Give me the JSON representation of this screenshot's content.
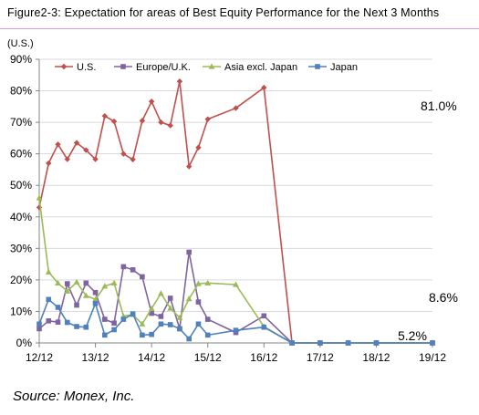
{
  "figure": {
    "title": "Figure2-3: Expectation for areas of Best Equity Performance for the Next 3 Months",
    "source": "Source: Monex, Inc."
  },
  "chart_data": {
    "type": "line",
    "unit_label": "(U.S.)",
    "ylim": [
      0,
      90
    ],
    "ytick_step": 10,
    "ytick_labels": [
      "0%",
      "10%",
      "20%",
      "30%",
      "40%",
      "50%",
      "60%",
      "70%",
      "80%",
      "90%"
    ],
    "xtick_labels": [
      "12/12",
      "13/12",
      "14/12",
      "15/12",
      "16/12",
      "17/12",
      "18/12",
      "19/12"
    ],
    "xtick_positions": [
      0,
      12,
      24,
      36,
      48,
      60,
      72,
      84
    ],
    "xlim": [
      0,
      84
    ],
    "legend_position": "top-left",
    "grid": "horizontal",
    "series": [
      {
        "name": "U.S.",
        "color": "#c0504d",
        "marker": "diamond",
        "x": [
          0,
          2,
          4,
          6,
          8,
          10,
          12,
          14,
          16,
          18,
          20,
          22,
          24,
          26,
          28,
          30,
          32,
          34,
          36,
          42,
          48,
          54,
          60,
          66,
          72,
          84
        ],
        "y": [
          43,
          57,
          63,
          58.3,
          63.5,
          61.2,
          58.3,
          72,
          70.3,
          60,
          58.2,
          70.5,
          76.6,
          70,
          69,
          83,
          56,
          62,
          71,
          74.5,
          81,
          0,
          0,
          0,
          0,
          0
        ]
      },
      {
        "name": "Europe/U.K.",
        "color": "#8064a2",
        "marker": "square",
        "x": [
          0,
          2,
          4,
          6,
          8,
          10,
          12,
          14,
          16,
          18,
          20,
          22,
          24,
          26,
          28,
          30,
          32,
          34,
          36,
          42,
          48,
          54,
          60,
          66,
          72,
          84
        ],
        "y": [
          4.5,
          7,
          6.6,
          18.8,
          12,
          19,
          16,
          7.5,
          6.3,
          24.2,
          23.2,
          21,
          9.4,
          8.4,
          14.2,
          4.5,
          28.8,
          13,
          7.5,
          3.3,
          8.6,
          0,
          0,
          0,
          0,
          0
        ]
      },
      {
        "name": "Asia excl. Japan",
        "color": "#9bbb59",
        "marker": "triangle",
        "x": [
          0,
          2,
          4,
          6,
          8,
          10,
          12,
          14,
          16,
          18,
          20,
          22,
          24,
          26,
          28,
          30,
          32,
          34,
          36,
          42,
          48,
          54,
          60,
          66,
          72,
          84
        ],
        "y": [
          46,
          22.5,
          19,
          16.4,
          19.3,
          15,
          13.8,
          18,
          19,
          8.5,
          9,
          6,
          10.9,
          15.7,
          11,
          8,
          14,
          18.8,
          19,
          18.5,
          5.2,
          0,
          0,
          0,
          0,
          0
        ]
      },
      {
        "name": "Japan",
        "color": "#4f81bd",
        "marker": "square",
        "x": [
          0,
          2,
          4,
          6,
          8,
          10,
          12,
          14,
          16,
          18,
          20,
          22,
          24,
          26,
          28,
          30,
          32,
          34,
          36,
          42,
          48,
          54,
          60,
          66,
          72,
          84
        ],
        "y": [
          6,
          13.8,
          11.3,
          6.5,
          5.2,
          5,
          12.5,
          2.5,
          4.2,
          7.5,
          9.2,
          2.5,
          2.7,
          6,
          5.8,
          4.5,
          1.3,
          6,
          2.5,
          4,
          5,
          0,
          0,
          0,
          0,
          0
        ]
      }
    ],
    "annotations": [
      "81.0%",
      "8.6%",
      "5.2%"
    ]
  },
  "colors": {
    "title_rule": "#e39ad6",
    "gridline": "#d9d9d9",
    "axis": "#868686"
  }
}
